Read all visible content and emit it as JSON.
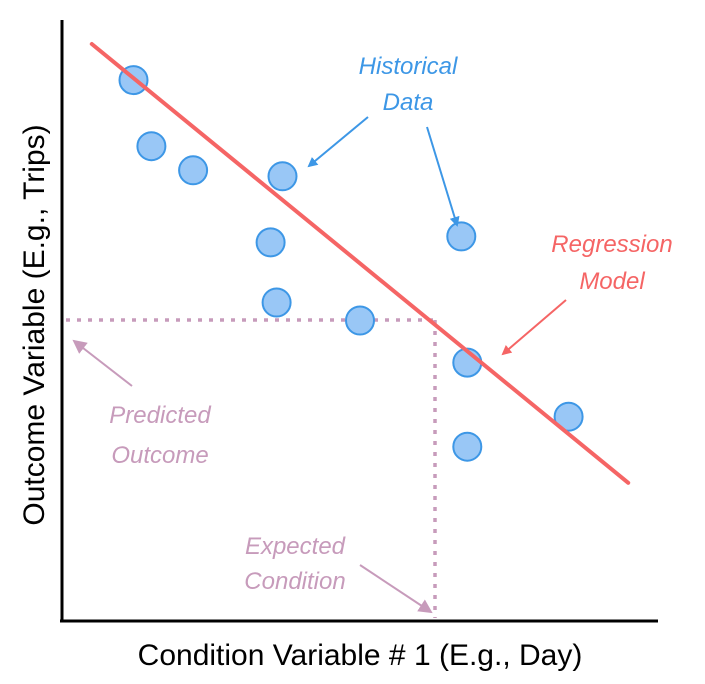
{
  "colors": {
    "axis": "#000000",
    "point_fill": "#99c7f6",
    "point_stroke": "#3d97e6",
    "regression": "#f56565",
    "historical": "#3d97e6",
    "predicted": "#c79bbb"
  },
  "axes": {
    "x_title": "Condition Variable # 1 (E.g., Day)",
    "y_title": "Outcome Variable (E.g., Trips)"
  },
  "annotations": {
    "historical": [
      "Historical",
      "Data"
    ],
    "regression": [
      "Regression",
      "Model"
    ],
    "predicted": [
      "Predicted",
      "Outcome"
    ],
    "expected": [
      "Expected",
      "Condition"
    ]
  },
  "chart_data": {
    "type": "scatter",
    "xlabel": "Condition Variable # 1 (E.g., Day)",
    "ylabel": "Outcome Variable (E.g., Trips)",
    "xlim": [
      0,
      100
    ],
    "ylim": [
      0,
      100
    ],
    "grid": false,
    "points": [
      {
        "x": 12,
        "y": 90
      },
      {
        "x": 15,
        "y": 79
      },
      {
        "x": 22,
        "y": 75
      },
      {
        "x": 37,
        "y": 74
      },
      {
        "x": 35,
        "y": 63
      },
      {
        "x": 36,
        "y": 53
      },
      {
        "x": 50,
        "y": 50
      },
      {
        "x": 67,
        "y": 64
      },
      {
        "x": 68,
        "y": 43
      },
      {
        "x": 68,
        "y": 29
      },
      {
        "x": 85,
        "y": 34
      }
    ],
    "regression_line": {
      "x": [
        5,
        95
      ],
      "y": [
        96,
        23
      ]
    },
    "predicted_outcome_y": 51,
    "expected_condition_x": 63
  }
}
